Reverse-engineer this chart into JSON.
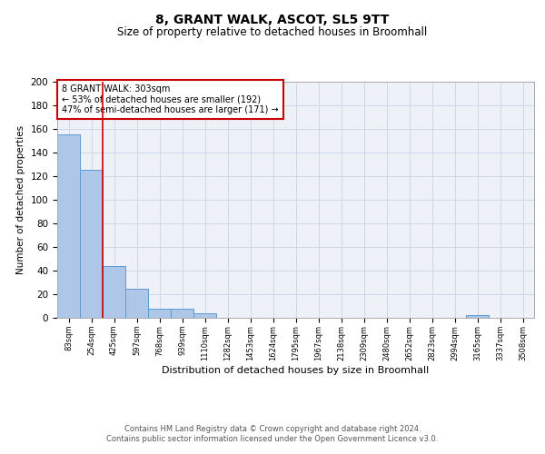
{
  "title": "8, GRANT WALK, ASCOT, SL5 9TT",
  "subtitle": "Size of property relative to detached houses in Broomhall",
  "xlabel": "Distribution of detached houses by size in Broomhall",
  "ylabel": "Number of detached properties",
  "categories": [
    "83sqm",
    "254sqm",
    "425sqm",
    "597sqm",
    "768sqm",
    "939sqm",
    "1110sqm",
    "1282sqm",
    "1453sqm",
    "1624sqm",
    "1795sqm",
    "1967sqm",
    "2138sqm",
    "2309sqm",
    "2480sqm",
    "2652sqm",
    "2823sqm",
    "2994sqm",
    "3165sqm",
    "3337sqm",
    "3508sqm"
  ],
  "values": [
    155,
    125,
    44,
    25,
    8,
    8,
    4,
    0,
    0,
    0,
    0,
    0,
    0,
    0,
    0,
    0,
    0,
    0,
    2,
    0,
    0
  ],
  "bar_color": "#aec6e8",
  "bar_edge_color": "#5b9bd5",
  "grid_color": "#d0d8e8",
  "background_color": "#eef2f8",
  "vline_x": 1.5,
  "vline_color": "#cc0000",
  "annotation_text": "8 GRANT WALK: 303sqm\n← 53% of detached houses are smaller (192)\n47% of semi-detached houses are larger (171) →",
  "annotation_box_color": "white",
  "annotation_box_edge": "#cc0000",
  "ylim": [
    0,
    200
  ],
  "yticks": [
    0,
    20,
    40,
    60,
    80,
    100,
    120,
    140,
    160,
    180,
    200
  ],
  "footer_line1": "Contains HM Land Registry data © Crown copyright and database right 2024.",
  "footer_line2": "Contains public sector information licensed under the Open Government Licence v3.0."
}
